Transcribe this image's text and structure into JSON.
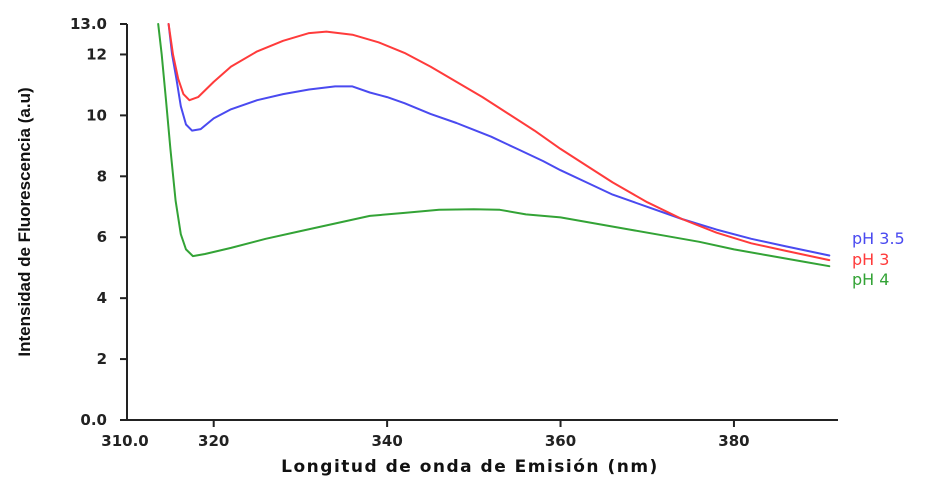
{
  "chart_data": {
    "type": "line",
    "xlabel": "Longitud de onda de Emisión (nm)",
    "ylabel": "Intensidad de Fluorescencia (a.u)",
    "xlim": [
      310,
      392
    ],
    "ylim": [
      0,
      13
    ],
    "x_ticks": [
      {
        "value": 310,
        "label": "310.0"
      },
      {
        "value": 320,
        "label": "320"
      },
      {
        "value": 340,
        "label": "340"
      },
      {
        "value": 360,
        "label": "360"
      },
      {
        "value": 380,
        "label": "380"
      }
    ],
    "y_ticks": [
      {
        "value": 0,
        "label": "0.0"
      },
      {
        "value": 2,
        "label": "2"
      },
      {
        "value": 4,
        "label": "4"
      },
      {
        "value": 6,
        "label": "6"
      },
      {
        "value": 8,
        "label": "8"
      },
      {
        "value": 10,
        "label": "10"
      },
      {
        "value": 12,
        "label": "12"
      },
      {
        "value": 13,
        "label": "13.0"
      }
    ],
    "grid": false,
    "legend_position": "right",
    "series": [
      {
        "name": "pH 3.5",
        "color": "#4a4af0",
        "points": [
          [
            314.8,
            13.0
          ],
          [
            315.2,
            12.0
          ],
          [
            315.7,
            11.2
          ],
          [
            316.2,
            10.3
          ],
          [
            316.8,
            9.7
          ],
          [
            317.5,
            9.5
          ],
          [
            318.5,
            9.55
          ],
          [
            320,
            9.9
          ],
          [
            322,
            10.2
          ],
          [
            325,
            10.5
          ],
          [
            328,
            10.7
          ],
          [
            331,
            10.85
          ],
          [
            334,
            10.95
          ],
          [
            336,
            10.95
          ],
          [
            338,
            10.75
          ],
          [
            340,
            10.6
          ],
          [
            342,
            10.4
          ],
          [
            345,
            10.05
          ],
          [
            348,
            9.75
          ],
          [
            352,
            9.3
          ],
          [
            355,
            8.9
          ],
          [
            358,
            8.5
          ],
          [
            360,
            8.2
          ],
          [
            363,
            7.8
          ],
          [
            366,
            7.4
          ],
          [
            370,
            7.0
          ],
          [
            374,
            6.6
          ],
          [
            378,
            6.25
          ],
          [
            382,
            5.95
          ],
          [
            386,
            5.7
          ],
          [
            391,
            5.4
          ]
        ]
      },
      {
        "name": "pH 3",
        "color": "#ff3b3b",
        "points": [
          [
            314.8,
            13.0
          ],
          [
            315.3,
            12.0
          ],
          [
            315.9,
            11.2
          ],
          [
            316.5,
            10.7
          ],
          [
            317.2,
            10.5
          ],
          [
            318.2,
            10.6
          ],
          [
            320,
            11.1
          ],
          [
            322,
            11.6
          ],
          [
            325,
            12.1
          ],
          [
            328,
            12.45
          ],
          [
            331,
            12.7
          ],
          [
            333,
            12.75
          ],
          [
            336,
            12.65
          ],
          [
            339,
            12.4
          ],
          [
            342,
            12.05
          ],
          [
            345,
            11.6
          ],
          [
            348,
            11.1
          ],
          [
            351,
            10.6
          ],
          [
            354,
            10.05
          ],
          [
            357,
            9.5
          ],
          [
            360,
            8.9
          ],
          [
            363,
            8.35
          ],
          [
            366,
            7.8
          ],
          [
            370,
            7.15
          ],
          [
            374,
            6.6
          ],
          [
            378,
            6.15
          ],
          [
            382,
            5.8
          ],
          [
            386,
            5.55
          ],
          [
            391,
            5.25
          ]
        ]
      },
      {
        "name": "pH 4",
        "color": "#33a336",
        "points": [
          [
            313.6,
            13.0
          ],
          [
            314.0,
            12.0
          ],
          [
            314.5,
            10.5
          ],
          [
            315.0,
            8.9
          ],
          [
            315.6,
            7.2
          ],
          [
            316.2,
            6.1
          ],
          [
            316.8,
            5.6
          ],
          [
            317.6,
            5.38
          ],
          [
            319,
            5.45
          ],
          [
            322,
            5.65
          ],
          [
            326,
            5.95
          ],
          [
            330,
            6.2
          ],
          [
            334,
            6.45
          ],
          [
            338,
            6.7
          ],
          [
            342,
            6.8
          ],
          [
            346,
            6.9
          ],
          [
            350,
            6.92
          ],
          [
            353,
            6.9
          ],
          [
            356,
            6.75
          ],
          [
            360,
            6.65
          ],
          [
            364,
            6.45
          ],
          [
            368,
            6.25
          ],
          [
            372,
            6.05
          ],
          [
            376,
            5.85
          ],
          [
            380,
            5.6
          ],
          [
            384,
            5.4
          ],
          [
            388,
            5.2
          ],
          [
            391,
            5.05
          ]
        ]
      }
    ],
    "legend": [
      {
        "name": "pH 3.5",
        "color": "#4a4af0"
      },
      {
        "name": "pH 3",
        "color": "#ff3b3b"
      },
      {
        "name": "pH 4",
        "color": "#33a336"
      }
    ]
  }
}
